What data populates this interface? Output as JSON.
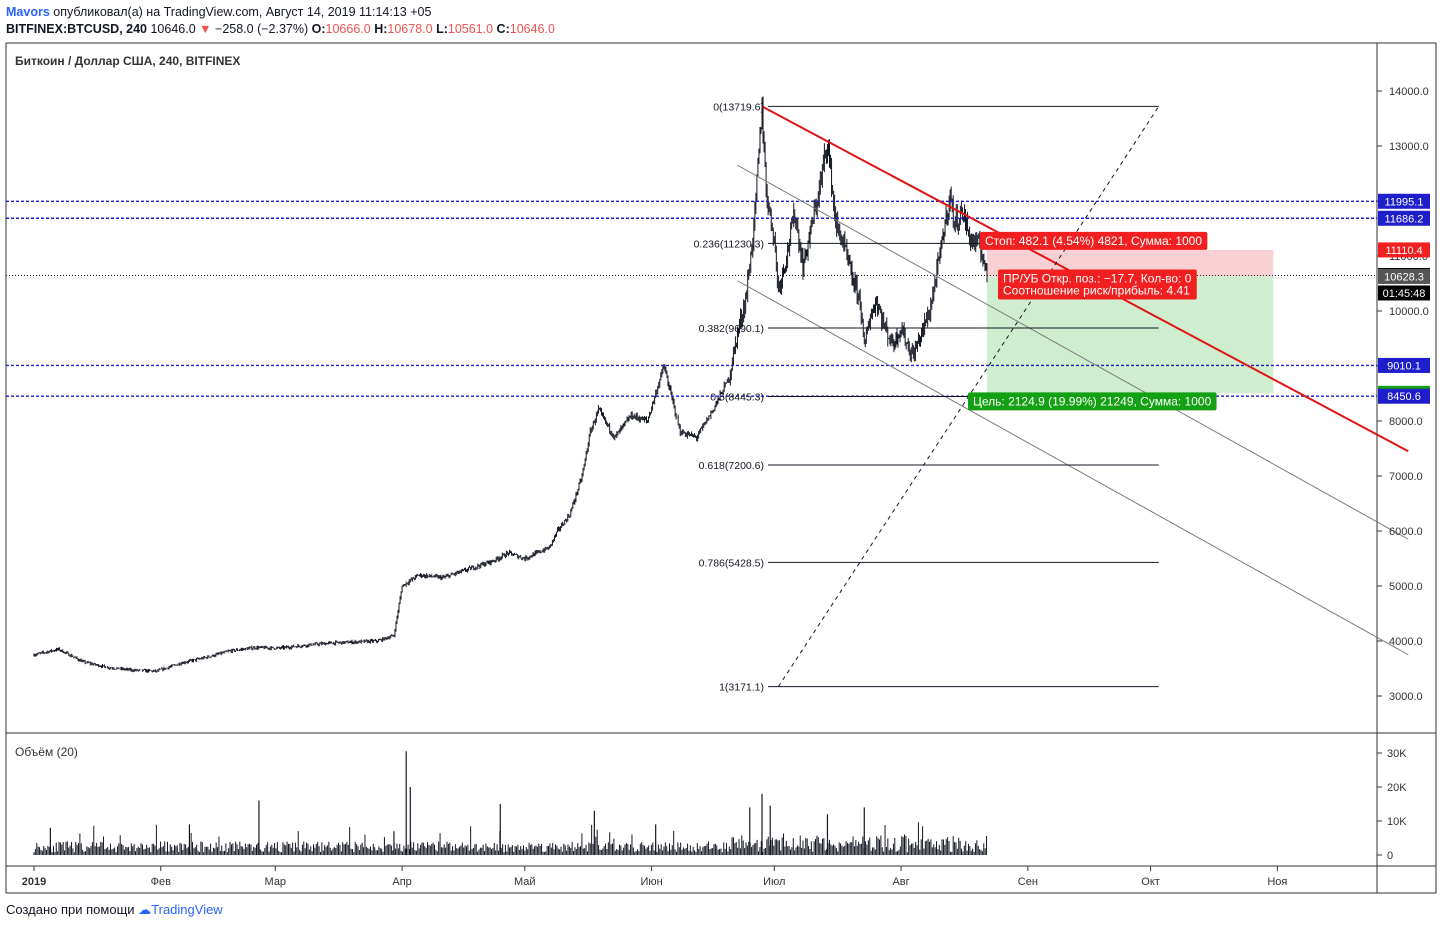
{
  "header": {
    "author": "Mavors",
    "published_text": "опубликовал(а) на TradingView.com, Август 14, 2019 11:14:13 +05",
    "symbol": "BITFINEX:BTCUSD, 240",
    "last": "10646.0",
    "change": "−258.0 (−2.37%)",
    "o_label": "O:",
    "o_value": "10666.0",
    "h_label": "H:",
    "h_value": "10678.0",
    "l_label": "L:",
    "l_value": "10561.0",
    "c_label": "C:",
    "c_value": "10646.0"
  },
  "pane_title": "Биткоин / Доллар США, 240, BITFINEX",
  "volume_title": "Объём (20)",
  "footer": {
    "text": "Создано при помощи",
    "brand": "TradingView"
  },
  "colors": {
    "up": "#131722",
    "red_line": "#e01414",
    "blue_level": "#1e1ecc",
    "stop_zone": "#f9d0d3",
    "target_zone": "#cfeecf",
    "stop_label_bg": "#f11f1f",
    "target_label_bg": "#14a014",
    "axis_grey": "#333333"
  },
  "chart_data": {
    "type": "candlestick",
    "symbol": "BTCUSD",
    "exchange": "BITFINEX",
    "interval": "240",
    "price_axis_ticks": [
      3000.0,
      4000.0,
      5000.0,
      6000.0,
      7000.0,
      8000.0,
      9000.0,
      10000.0,
      11000.0,
      12000.0,
      13000.0,
      14000.0
    ],
    "price_axis_tick_labels": [
      "3000.0",
      "4000.0",
      "5000.0",
      "6000.0",
      "7000.0",
      "8000.0",
      "9000.0",
      "10000.0",
      "11000.0",
      "12000.0",
      "13000.0",
      "14000.0"
    ],
    "volume_axis_ticks": [
      0,
      10000,
      20000,
      30000
    ],
    "volume_axis_tick_labels": [
      "0",
      "10K",
      "20K",
      "30K"
    ],
    "time_axis": [
      {
        "label": "2019",
        "day": 0
      },
      {
        "label": "Фев",
        "day": 31
      },
      {
        "label": "Мар",
        "day": 59
      },
      {
        "label": "Апр",
        "day": 90
      },
      {
        "label": "Май",
        "day": 120
      },
      {
        "label": "Июн",
        "day": 151
      },
      {
        "label": "Июл",
        "day": 181
      },
      {
        "label": "Авг",
        "day": 212
      },
      {
        "label": "Сен",
        "day": 243
      },
      {
        "label": "Окт",
        "day": 273
      },
      {
        "label": "Ноя",
        "day": 304
      }
    ],
    "price_path": [
      [
        0,
        3750
      ],
      [
        6,
        3850
      ],
      [
        12,
        3620
      ],
      [
        18,
        3520
      ],
      [
        24,
        3470
      ],
      [
        30,
        3450
      ],
      [
        36,
        3600
      ],
      [
        42,
        3700
      ],
      [
        48,
        3820
      ],
      [
        54,
        3880
      ],
      [
        60,
        3870
      ],
      [
        66,
        3920
      ],
      [
        72,
        3960
      ],
      [
        78,
        3980
      ],
      [
        84,
        4000
      ],
      [
        88,
        4100
      ],
      [
        90,
        5000
      ],
      [
        94,
        5200
      ],
      [
        100,
        5150
      ],
      [
        106,
        5300
      ],
      [
        112,
        5450
      ],
      [
        116,
        5600
      ],
      [
        120,
        5500
      ],
      [
        126,
        5700
      ],
      [
        128,
        6000
      ],
      [
        131,
        6300
      ],
      [
        134,
        7000
      ],
      [
        136,
        7800
      ],
      [
        138,
        8200
      ],
      [
        142,
        7700
      ],
      [
        146,
        8100
      ],
      [
        150,
        8000
      ],
      [
        152,
        8500
      ],
      [
        154,
        9000
      ],
      [
        156,
        8400
      ],
      [
        158,
        7800
      ],
      [
        162,
        7700
      ],
      [
        166,
        8200
      ],
      [
        170,
        8800
      ],
      [
        172,
        9600
      ],
      [
        174,
        10200
      ],
      [
        176,
        11500
      ],
      [
        177,
        12600
      ],
      [
        178,
        13720
      ],
      [
        179,
        12200
      ],
      [
        181,
        11300
      ],
      [
        182,
        10400
      ],
      [
        184,
        11000
      ],
      [
        186,
        11800
      ],
      [
        188,
        10800
      ],
      [
        190,
        11500
      ],
      [
        192,
        12200
      ],
      [
        194,
        13100
      ],
      [
        196,
        11600
      ],
      [
        198,
        11200
      ],
      [
        200,
        10600
      ],
      [
        202,
        10200
      ],
      [
        203,
        9300
      ],
      [
        204,
        9800
      ],
      [
        206,
        10200
      ],
      [
        208,
        9700
      ],
      [
        210,
        9400
      ],
      [
        212,
        9700
      ],
      [
        214,
        9300
      ],
      [
        215,
        9200
      ],
      [
        217,
        9600
      ],
      [
        219,
        10000
      ],
      [
        221,
        10800
      ],
      [
        223,
        11700
      ],
      [
        224,
        12100
      ],
      [
        225,
        11600
      ],
      [
        227,
        11800
      ],
      [
        229,
        11300
      ],
      [
        231,
        11200
      ],
      [
        232,
        11000
      ],
      [
        233,
        10646
      ]
    ],
    "current_price": 10646.0,
    "countdown": "01:45:48",
    "fibonacci": {
      "start_day": 178,
      "end_day": 275,
      "levels": [
        {
          "ratio_label": "0(13719.6)",
          "price": 13719.6
        },
        {
          "ratio_label": "0.236(11230.3)",
          "price": 11230.3
        },
        {
          "ratio_label": "0.382(9690.1)",
          "price": 9690.1
        },
        {
          "ratio_label": "0.5(8445.3)",
          "price": 8445.3
        },
        {
          "ratio_label": "0.618(7200.6)",
          "price": 7200.6
        },
        {
          "ratio_label": "0.786(5428.5)",
          "price": 5428.5
        },
        {
          "ratio_label": "1(3171.1)",
          "price": 3171.1
        }
      ]
    },
    "horizontal_levels": [
      {
        "price": 11995.1,
        "label": "11995.1"
      },
      {
        "price": 11686.2,
        "label": "11686.2"
      },
      {
        "price": 9010.1,
        "label": "9010.1"
      },
      {
        "price": 8450.6,
        "label": "8450.6"
      }
    ],
    "diagonal_trendline": {
      "start": [
        178,
        13719.6
      ],
      "end": [
        336,
        7450
      ]
    },
    "channel_lines": [
      {
        "start": [
          172,
          12650
        ],
        "end": [
          336,
          5850
        ]
      },
      {
        "start": [
          172,
          10550
        ],
        "end": [
          336,
          3750
        ]
      }
    ],
    "diagonal_dashed": {
      "start": [
        182,
        3171.1
      ],
      "end": [
        275,
        13719.6
      ]
    },
    "position": {
      "entry": 10628.3,
      "stop": 11110.4,
      "target": 8503.4,
      "start_day": 233,
      "end_day": 303,
      "stop_label": "Стоп: 482.1 (4.54%) 4821, Сумма: 1000",
      "pnl_label": "ПР/УБ Откр. поз.: −17.7, Кол-во: 0",
      "ratio_label": "Соотношение риск/прибыль: 4.41",
      "target_label": "Цель: 2124.9 (19.99%) 21249, Сумма: 1000"
    },
    "price_axis_badges": [
      {
        "price": 11995.1,
        "label": "11995.1",
        "kind": "blue"
      },
      {
        "price": 11686.2,
        "label": "11686.2",
        "kind": "blue"
      },
      {
        "price": 11110.4,
        "label": "11110.4",
        "kind": "red"
      },
      {
        "price": 10646.0,
        "label": "10646.0",
        "kind": "black"
      },
      {
        "price": 10628.3,
        "label": "10628.3",
        "kind": "grey"
      },
      {
        "price": 9010.1,
        "label": "9010.1",
        "kind": "blue"
      },
      {
        "price": 8503.4,
        "label": "8503.4",
        "kind": "green"
      },
      {
        "price": 8450.6,
        "label": "8450.6",
        "kind": "blue"
      }
    ],
    "volume_spikes": [
      {
        "day": 4,
        "v": 8000
      },
      {
        "day": 38,
        "v": 9000
      },
      {
        "day": 55,
        "v": 16000
      },
      {
        "day": 88,
        "v": 7000
      },
      {
        "day": 91,
        "v": 30500
      },
      {
        "day": 92,
        "v": 20000
      },
      {
        "day": 114,
        "v": 15000
      },
      {
        "day": 137,
        "v": 13000
      },
      {
        "day": 152,
        "v": 9000
      },
      {
        "day": 175,
        "v": 14000
      },
      {
        "day": 178,
        "v": 18000
      },
      {
        "day": 180,
        "v": 14500
      },
      {
        "day": 194,
        "v": 12000
      },
      {
        "day": 203,
        "v": 14000
      }
    ]
  }
}
